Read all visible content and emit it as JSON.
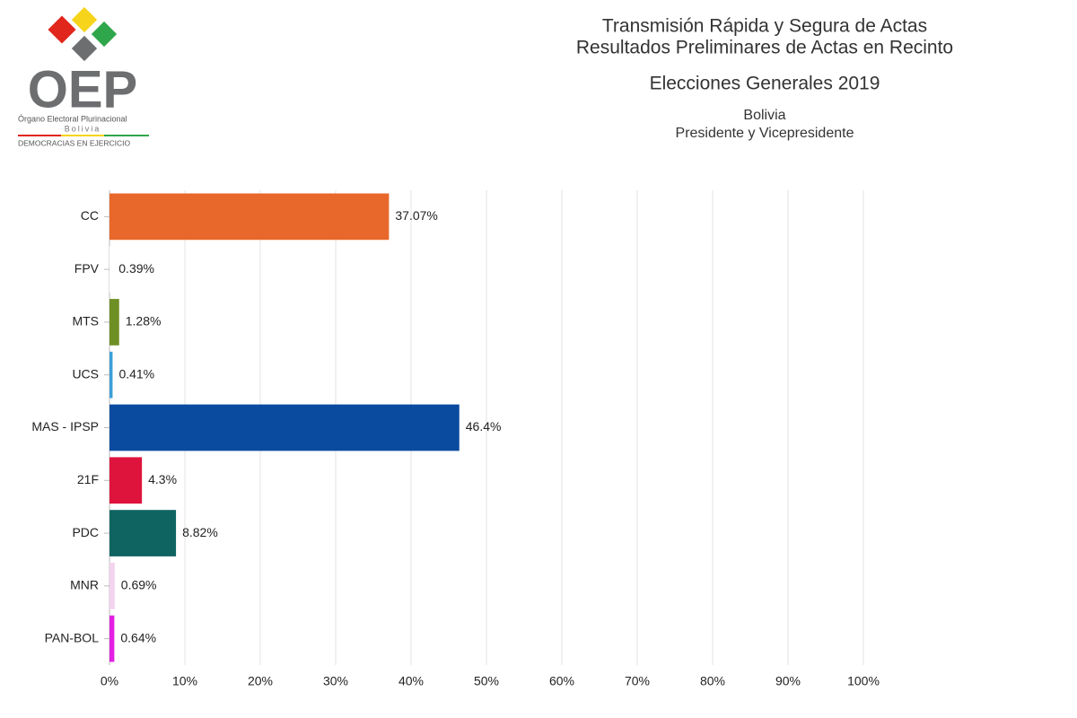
{
  "logo": {
    "acronym": "OEP",
    "name": "Órgano Electoral Plurinacional",
    "country": "Bolivia",
    "motto": "DEMOCRACIAS EN EJERCICIO"
  },
  "chart_data": {
    "type": "hbar",
    "title": "Transmisión Rápida y Segura de Actas",
    "subtitle": "Resultados Preliminares de Actas en Recinto",
    "election": "Elecciones Generales 2019",
    "country": "Bolivia",
    "office": "Presidente y Vicepresidente",
    "categories": [
      "CC",
      "FPV",
      "MTS",
      "UCS",
      "MAS - IPSP",
      "21F",
      "PDC",
      "MNR",
      "PAN-BOL"
    ],
    "values": [
      37.07,
      0.39,
      1.28,
      0.41,
      46.4,
      4.3,
      8.82,
      0.69,
      0.64
    ],
    "value_labels": [
      "37.07%",
      "0.39%",
      "1.28%",
      "0.41%",
      "46.4%",
      "4.3%",
      "8.82%",
      "0.69%",
      "0.64%"
    ],
    "colors": [
      "#e8672a",
      "#ffffff",
      "#6e8f24",
      "#3d9fd8",
      "#0b4b9f",
      "#de143d",
      "#0f6461",
      "#f4d3ee",
      "#e21fe2"
    ],
    "xlim": [
      0,
      100
    ],
    "xticks": [
      {
        "value": 0,
        "label": "0%"
      },
      {
        "value": 10,
        "label": "10%"
      },
      {
        "value": 20,
        "label": "20%"
      },
      {
        "value": 30,
        "label": "30%"
      },
      {
        "value": 40,
        "label": "40%"
      },
      {
        "value": 50,
        "label": "50%"
      },
      {
        "value": 60,
        "label": "60%"
      },
      {
        "value": 70,
        "label": "70%"
      },
      {
        "value": 80,
        "label": "80%"
      },
      {
        "value": 90,
        "label": "90%"
      },
      {
        "value": 100,
        "label": "100%"
      }
    ],
    "grid": true
  }
}
